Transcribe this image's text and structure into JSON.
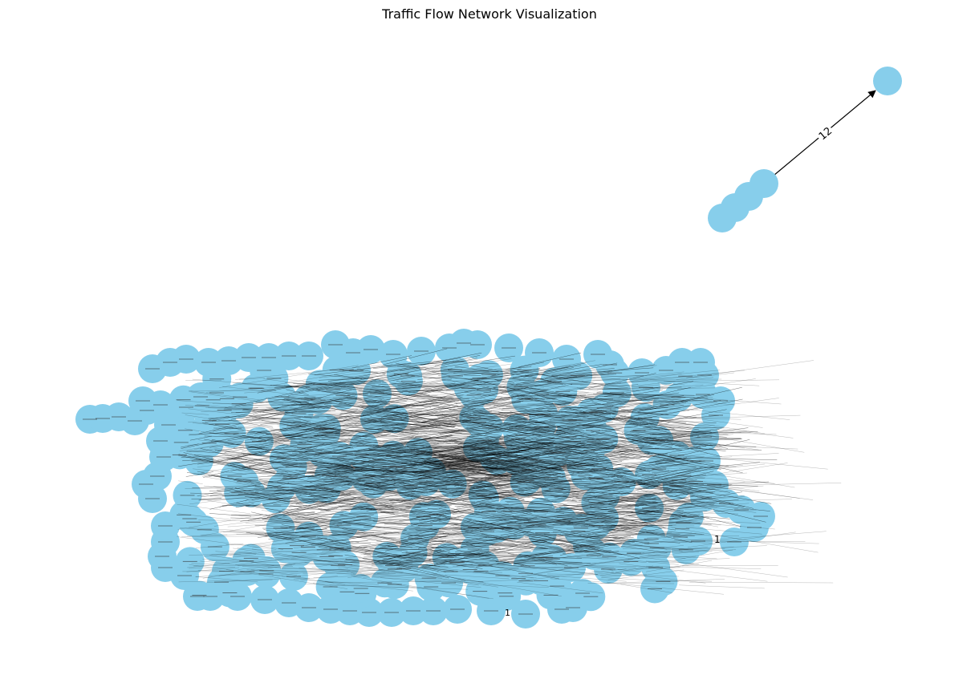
{
  "title": "Traffic Flow Network Visualization",
  "colors": {
    "node": "#87ceeb",
    "edge": "#000000",
    "label": "#000000",
    "background": "#ffffff"
  },
  "isolated_component": {
    "edge_label": "12"
  },
  "main_cluster": {
    "edge_labels": [
      "1",
      "1"
    ]
  }
}
